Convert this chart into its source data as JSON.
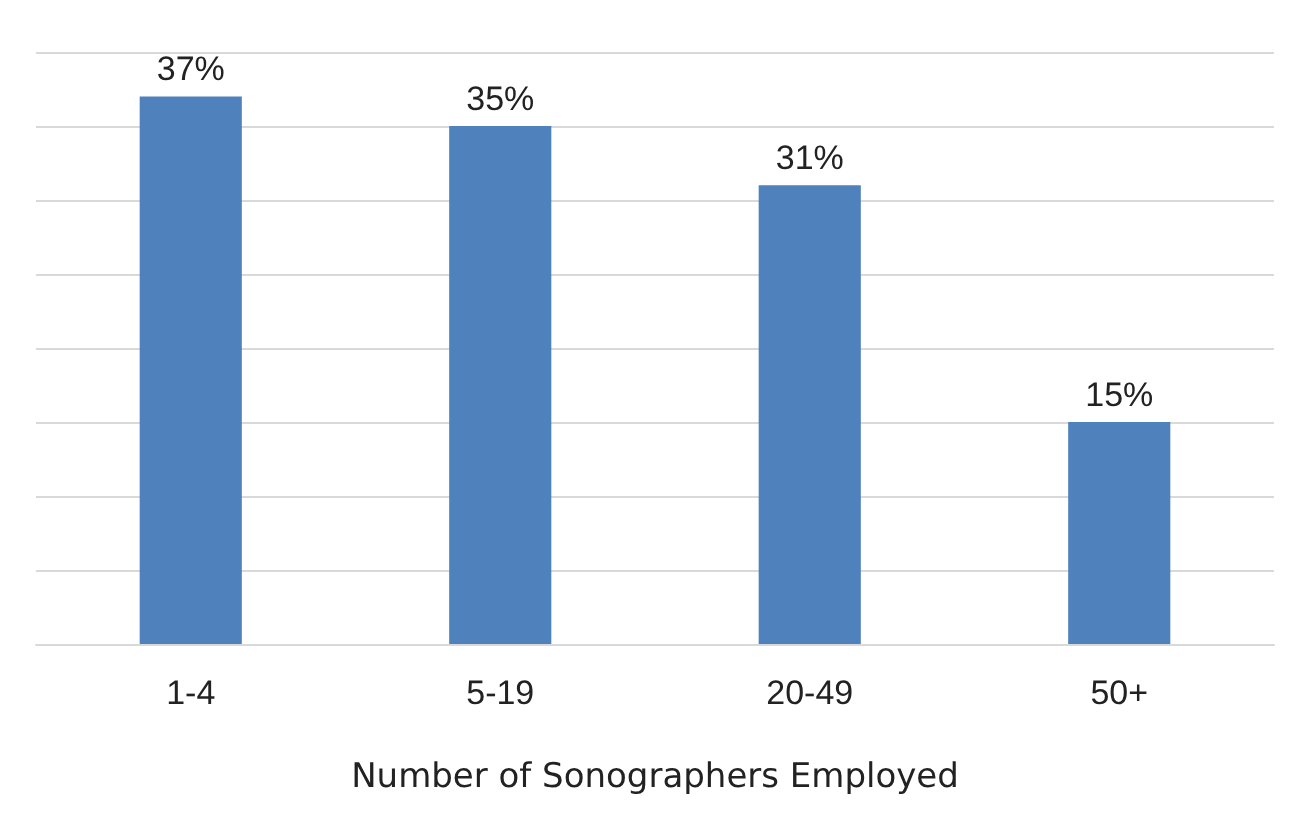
{
  "chart_data": {
    "type": "bar",
    "xlabel": "Number of Sonographers Employed",
    "categories": [
      "1-4",
      "5-19",
      "20-49",
      "50+"
    ],
    "values": [
      37,
      35,
      31,
      15
    ],
    "value_labels": [
      "37%",
      "35%",
      "31%",
      "15%"
    ],
    "color": "#4f81bd",
    "ylim": [
      0,
      40
    ],
    "yticks": [
      {
        "value": 0,
        "label": null
      },
      {
        "value": 5,
        "label": null
      },
      {
        "value": 10,
        "label": null
      },
      {
        "value": 15,
        "label": null
      },
      {
        "value": 20,
        "label": null
      },
      {
        "value": 25,
        "label": null
      },
      {
        "value": 30,
        "label": null
      },
      {
        "value": 35,
        "label": null
      },
      {
        "value": 40,
        "label": null
      }
    ],
    "grid": "y",
    "tick_labels": "x"
  }
}
